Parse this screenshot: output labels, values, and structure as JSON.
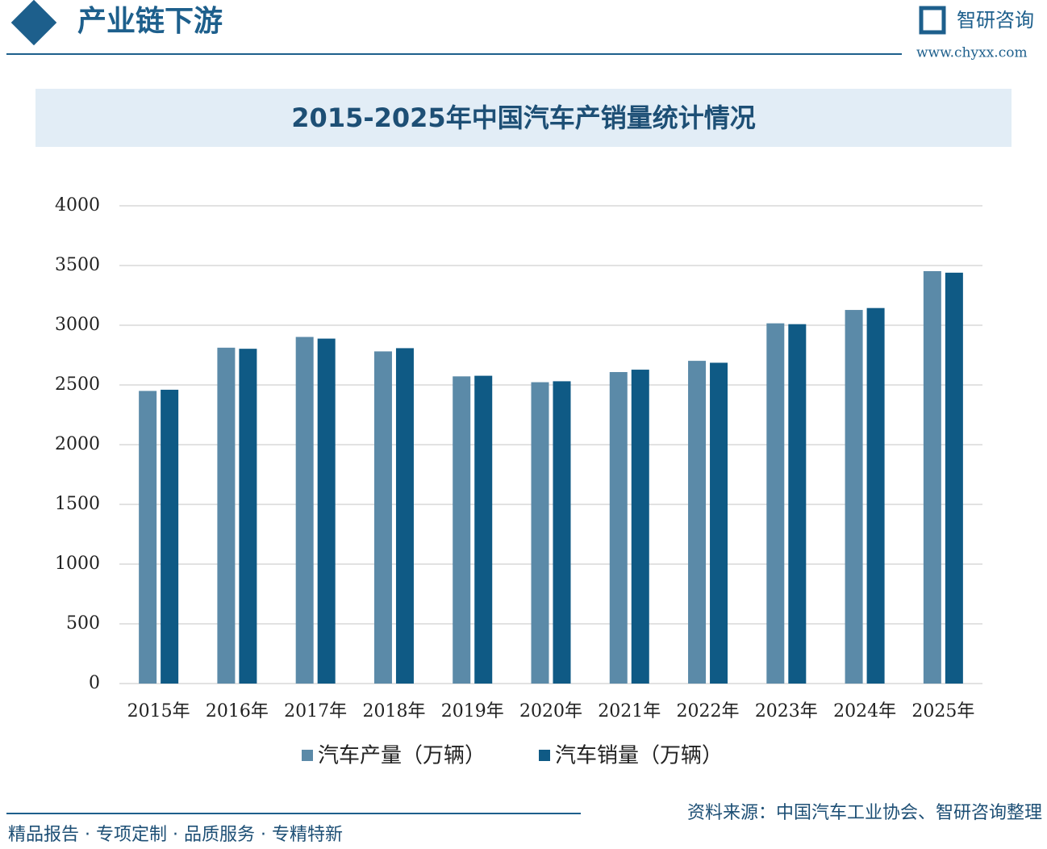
{
  "header": {
    "section": "产业链下游",
    "brand": "智研咨询",
    "url": "www.chyxx.com"
  },
  "chart_data": {
    "type": "bar",
    "title": "2015-2025年中国汽车产销量统计情况",
    "categories": [
      "2015年",
      "2016年",
      "2017年",
      "2018年",
      "2019年",
      "2020年",
      "2021年",
      "2022年",
      "2023年",
      "2024年",
      "2025年"
    ],
    "series": [
      {
        "name": "汽车产量（万辆）",
        "color": "#5b8aa8",
        "values": [
          2450,
          2812,
          2902,
          2781,
          2572,
          2523,
          2608,
          2702,
          3016,
          3128,
          3453
        ]
      },
      {
        "name": "汽车销量（万辆）",
        "color": "#0f5a85",
        "values": [
          2460,
          2803,
          2888,
          2808,
          2577,
          2531,
          2628,
          2686,
          3009,
          3144,
          3440
        ]
      }
    ],
    "ylim": [
      0,
      4000
    ],
    "yticks": [
      0,
      500,
      1000,
      1500,
      2000,
      2500,
      3000,
      3500,
      4000
    ],
    "grid": true
  },
  "footer": {
    "slogan": "精品报告 · 专项定制 · 品质服务 · 专精特新",
    "source": "资料来源：中国汽车工业协会、智研咨询整理"
  }
}
